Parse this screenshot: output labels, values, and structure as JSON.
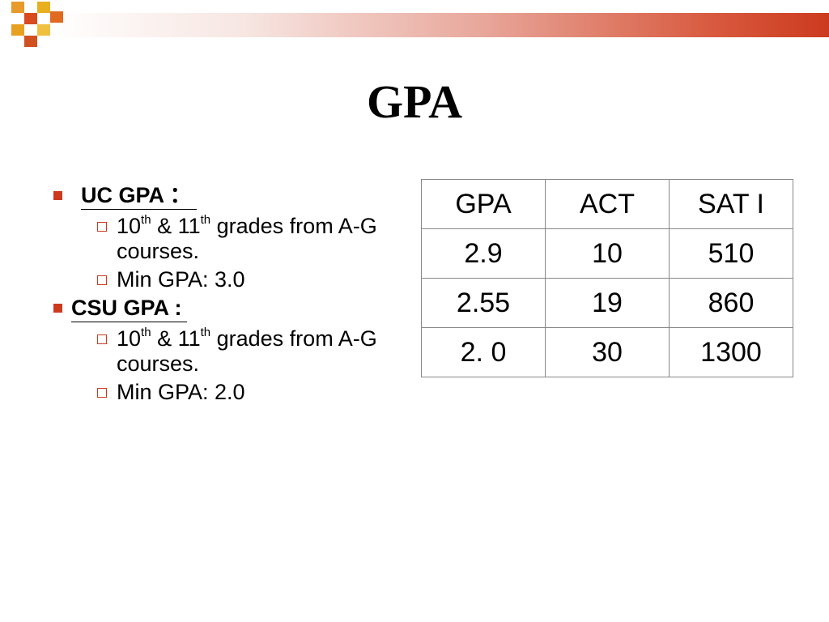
{
  "slide": {
    "title": "GPA",
    "colors": {
      "accent": "#cc3a1e",
      "gold": "#e8a020",
      "band_end": "#cc3a1e"
    }
  },
  "bullets": [
    {
      "heading": "UC GPA ：",
      "subs": [
        {
          "grade1": "10",
          "sup1": "th",
          "amp": " & 11",
          "sup2": "th",
          "rest": " grades from A-G courses."
        },
        {
          "text": "Min GPA: 3.0"
        }
      ]
    },
    {
      "heading": "CSU GPA :",
      "subs": [
        {
          "grade1": "10",
          "sup1": "th",
          "amp": " & 11",
          "sup2": "th",
          "rest": " grades from A-G courses."
        },
        {
          "text": "Min GPA: 2.0"
        }
      ]
    }
  ],
  "table": {
    "headers": [
      "GPA",
      "ACT",
      "SAT I"
    ],
    "rows": [
      [
        "2.9",
        "10",
        "510"
      ],
      [
        "2.55",
        "19",
        "860"
      ],
      [
        "2. 0",
        "30",
        "1300"
      ]
    ]
  },
  "icons": {
    "bullet": "square-bullet-icon",
    "sub_bullet": "hollow-square-icon"
  }
}
